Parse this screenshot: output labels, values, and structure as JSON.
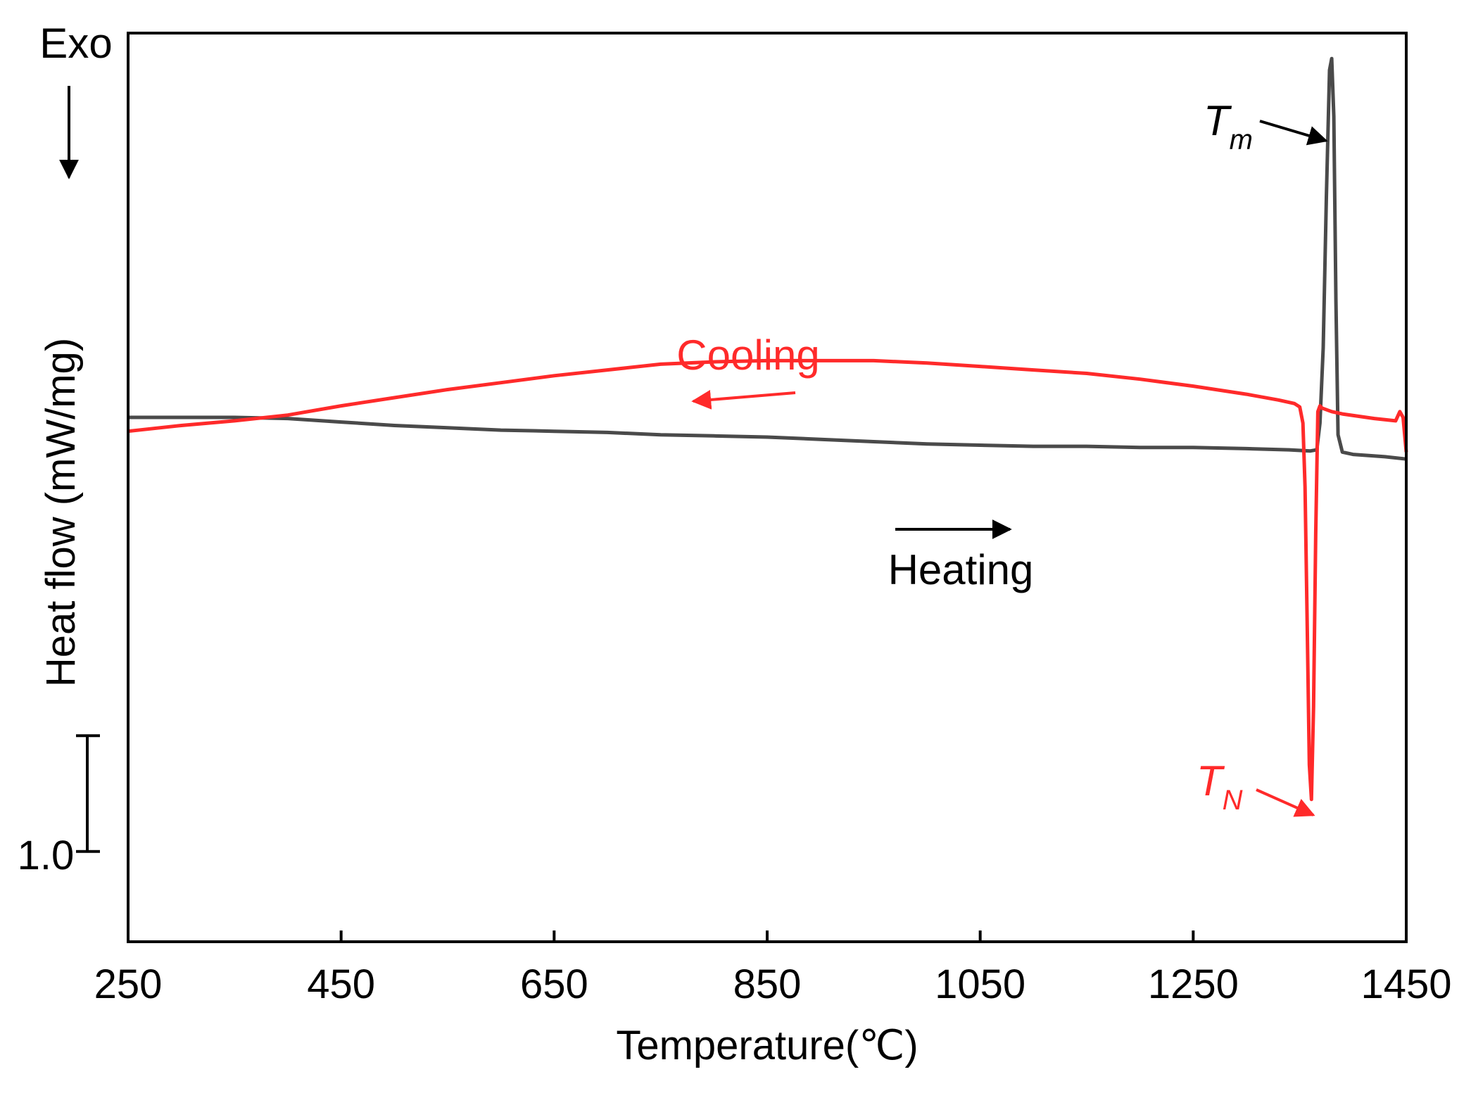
{
  "chart_data": {
    "type": "line",
    "title": "",
    "xlabel": "Temperature(℃)",
    "ylabel": "Heat flow (mW/mg)",
    "xlim": [
      250,
      1450
    ],
    "ylim": [
      -4.53,
      3.32
    ],
    "x_ticks": [
      250,
      450,
      650,
      850,
      1050,
      1250,
      1450
    ],
    "x_tick_labels": [
      "250",
      "450",
      "650",
      "850",
      "1050",
      "1250",
      "1450"
    ],
    "grid": false,
    "y_direction_label": "Exo",
    "scale_bar": {
      "label": "1.0",
      "value": 1.0,
      "from": -3.75,
      "to": -2.75
    },
    "series": [
      {
        "name": "Heating",
        "color": "#4a4a4a",
        "x": [
          250,
          300,
          350,
          400,
          450,
          500,
          550,
          600,
          650,
          700,
          750,
          800,
          850,
          900,
          950,
          1000,
          1050,
          1100,
          1150,
          1200,
          1250,
          1300,
          1340,
          1360,
          1366,
          1369,
          1372,
          1375,
          1378,
          1380,
          1382,
          1384,
          1386,
          1390,
          1400,
          1430,
          1450
        ],
        "y": [
          0.0,
          0.0,
          0.0,
          -0.01,
          -0.04,
          -0.07,
          -0.09,
          -0.11,
          -0.12,
          -0.13,
          -0.15,
          -0.16,
          -0.17,
          -0.19,
          -0.21,
          -0.23,
          -0.24,
          -0.25,
          -0.25,
          -0.26,
          -0.26,
          -0.27,
          -0.28,
          -0.29,
          -0.28,
          -0.05,
          0.6,
          1.9,
          3.0,
          3.1,
          2.6,
          1.0,
          -0.15,
          -0.3,
          -0.32,
          -0.34,
          -0.36
        ]
      },
      {
        "name": "Cooling",
        "color": "#ff2a2a",
        "x": [
          250,
          300,
          350,
          400,
          450,
          500,
          550,
          600,
          650,
          700,
          750,
          800,
          850,
          900,
          950,
          1000,
          1050,
          1100,
          1150,
          1200,
          1250,
          1300,
          1330,
          1345,
          1350,
          1353,
          1355,
          1357,
          1359,
          1361,
          1363,
          1365,
          1367,
          1369,
          1371,
          1380,
          1390,
          1420,
          1440,
          1444,
          1447,
          1450
        ],
        "y": [
          -0.12,
          -0.07,
          -0.03,
          0.02,
          0.1,
          0.17,
          0.24,
          0.3,
          0.36,
          0.41,
          0.46,
          0.48,
          0.49,
          0.49,
          0.49,
          0.47,
          0.44,
          0.41,
          0.38,
          0.33,
          0.27,
          0.2,
          0.15,
          0.12,
          0.09,
          -0.05,
          -0.6,
          -1.8,
          -3.0,
          -3.3,
          -2.5,
          -1.0,
          0.05,
          0.1,
          0.08,
          0.05,
          0.03,
          -0.01,
          -0.03,
          0.05,
          0.0,
          -0.3
        ]
      }
    ],
    "annotations": [
      {
        "text": "Cooling",
        "color": "#ff2a2a",
        "arrow": "left"
      },
      {
        "text": "Heating",
        "color": "#000000",
        "arrow": "right"
      },
      {
        "symbol": "T",
        "subscript": "m",
        "color": "#000000",
        "points_to": "melting peak"
      },
      {
        "symbol": "T",
        "subscript": "N",
        "color": "#ff2a2a",
        "points_to": "nucleation dip"
      }
    ]
  }
}
